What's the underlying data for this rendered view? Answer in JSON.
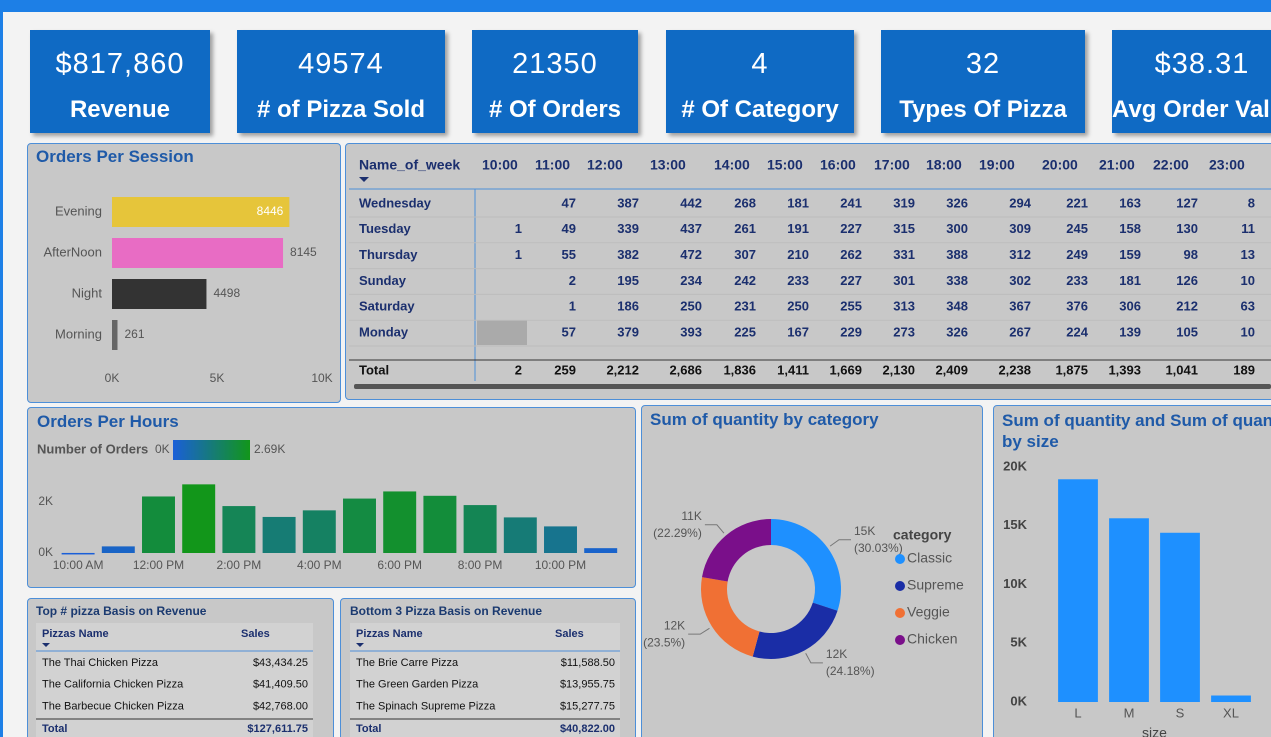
{
  "kpis": [
    {
      "value": "$817,860",
      "label": "Revenue"
    },
    {
      "value": "49574",
      "label": "# of Pizza Sold"
    },
    {
      "value": "21350",
      "label": "# Of Orders"
    },
    {
      "value": "4",
      "label": "# Of Category"
    },
    {
      "value": "32",
      "label": "Types Of Pizza"
    },
    {
      "value": "$38.31",
      "label": "Avg Order Value"
    }
  ],
  "chart_data": [
    {
      "type": "hbar",
      "title": "Orders Per Session",
      "categories": [
        "Evening",
        "AfterNoon",
        "Night",
        "Morning"
      ],
      "values": [
        8446,
        8145,
        4498,
        261
      ],
      "colors": [
        "#e6c53a",
        "#e86cc4",
        "#333333",
        "#666666"
      ],
      "xlim": [
        0,
        10000
      ],
      "xticks": [
        {
          "value": 0,
          "label": "0K"
        },
        {
          "value": 5000,
          "label": "5K"
        },
        {
          "value": 10000,
          "label": "10K"
        }
      ]
    },
    {
      "type": "bar",
      "title": "Orders Per Hours",
      "legend_title": "Number of Orders",
      "color_scale": {
        "min": {
          "value": 0,
          "label": "0K"
        },
        "max": {
          "value": 2690,
          "label": "2.69K"
        },
        "colors": [
          "#1a5fd8",
          "#12961a"
        ]
      },
      "categories": [
        "10:00 AM",
        null,
        "12:00 PM",
        null,
        "2:00 PM",
        null,
        "4:00 PM",
        null,
        "6:00 PM",
        null,
        "8:00 PM",
        null,
        "10:00 PM",
        null
      ],
      "values": [
        2,
        259,
        2212,
        2686,
        1836,
        1411,
        1669,
        2130,
        2409,
        2238,
        1875,
        1393,
        1041,
        189
      ],
      "ylim": [
        0,
        2700
      ],
      "yticks": [
        {
          "value": 0,
          "label": "0K"
        },
        {
          "value": 2000,
          "label": "2K"
        }
      ]
    },
    {
      "type": "donut",
      "title": "Sum of quantity by category",
      "legend_title": "category",
      "categories": [
        "Classic",
        "Supreme",
        "Veggie",
        "Chicken"
      ],
      "values": [
        14888,
        11987,
        11649,
        11050
      ],
      "value_labels": [
        "15K",
        "12K",
        "12K",
        "11K"
      ],
      "percent_labels": [
        "(30.03%)",
        "(24.18%)",
        "(23.5%)",
        "(22.29%)"
      ],
      "colors": [
        "#1e90ff",
        "#1a2da6",
        "#f07034",
        "#7a0f8a"
      ]
    },
    {
      "type": "bar",
      "title": "Sum of quantity and Sum of quantity by size",
      "x_label": "size",
      "categories": [
        "L",
        "M",
        "S",
        "XL"
      ],
      "values": [
        18956,
        15635,
        14403,
        552
      ],
      "color": "#1e90ff",
      "ylim": [
        0,
        20000
      ],
      "yticks": [
        {
          "value": 0,
          "label": "0K"
        },
        {
          "value": 5000,
          "label": "5K"
        },
        {
          "value": 10000,
          "label": "10K"
        },
        {
          "value": 15000,
          "label": "15K"
        },
        {
          "value": 20000,
          "label": "20K"
        }
      ]
    }
  ],
  "matrix": {
    "row_header": "Name_of_week",
    "columns": [
      "10:00",
      "11:00",
      "12:00",
      "13:00",
      "14:00",
      "15:00",
      "16:00",
      "17:00",
      "18:00",
      "19:00",
      "20:00",
      "21:00",
      "22:00",
      "23:00"
    ],
    "rows": [
      {
        "name": "Wednesday",
        "cells": [
          null,
          47,
          387,
          442,
          268,
          181,
          241,
          319,
          326,
          294,
          221,
          163,
          127,
          8
        ]
      },
      {
        "name": "Tuesday",
        "cells": [
          1,
          49,
          339,
          437,
          261,
          191,
          227,
          315,
          300,
          309,
          245,
          158,
          130,
          11
        ]
      },
      {
        "name": "Thursday",
        "cells": [
          1,
          55,
          382,
          472,
          307,
          210,
          262,
          331,
          388,
          312,
          249,
          159,
          98,
          13
        ]
      },
      {
        "name": "Sunday",
        "cells": [
          null,
          2,
          195,
          234,
          242,
          233,
          227,
          301,
          338,
          302,
          233,
          181,
          126,
          10
        ]
      },
      {
        "name": "Saturday",
        "cells": [
          null,
          1,
          186,
          250,
          231,
          250,
          255,
          313,
          348,
          367,
          376,
          306,
          212,
          63
        ]
      },
      {
        "name": "Monday",
        "cells": [
          null,
          57,
          379,
          393,
          225,
          167,
          229,
          273,
          326,
          267,
          224,
          139,
          105,
          10
        ]
      }
    ],
    "total": {
      "name": "Total",
      "cells": [
        2,
        259,
        "2,212",
        "2,686",
        "1,836",
        "1,411",
        "1,669",
        "2,130",
        "2,409",
        "2,238",
        "1,875",
        "1,393",
        "1,041",
        189
      ]
    }
  },
  "tables": [
    {
      "title": "Top # pizza Basis on Revenue",
      "columns": [
        "Pizzas Name",
        "Sales"
      ],
      "rows": [
        [
          "The Thai Chicken Pizza",
          "$43,434.25"
        ],
        [
          "The California Chicken Pizza",
          "$41,409.50"
        ],
        [
          "The Barbecue Chicken Pizza",
          "$42,768.00"
        ]
      ],
      "total": [
        "Total",
        "$127,611.75"
      ]
    },
    {
      "title": "Bottom 3 Pizza Basis on Revenue",
      "columns": [
        "Pizzas Name",
        "Sales"
      ],
      "rows": [
        [
          "The Brie Carre Pizza",
          "$11,588.50"
        ],
        [
          "The Green Garden Pizza",
          "$13,955.75"
        ],
        [
          "The Spinach Supreme Pizza",
          "$15,277.75"
        ]
      ],
      "total": [
        "Total",
        "$40,822.00"
      ]
    }
  ]
}
